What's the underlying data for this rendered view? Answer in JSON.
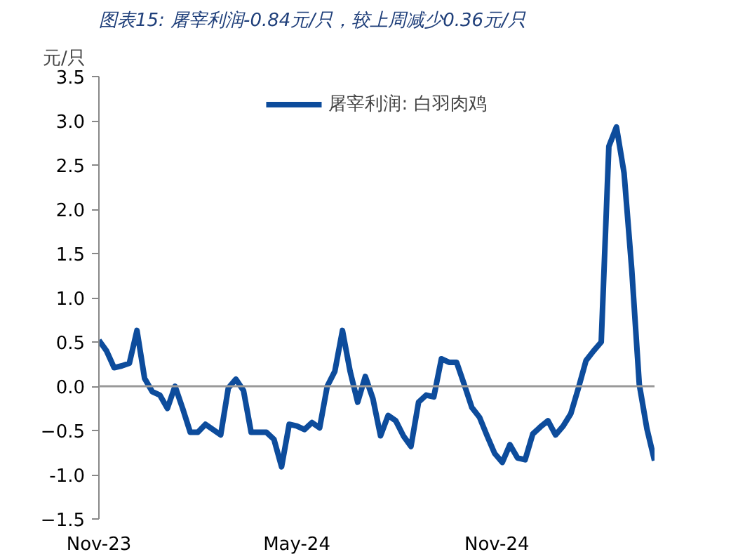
{
  "chart_data": {
    "type": "line",
    "title": "图表15: 屠宰利润-0.84元/只，较上周减少0.36元/只",
    "ylabel": "元/只",
    "x": [
      "2023-11-01",
      "2023-11-08",
      "2023-11-15",
      "2023-11-22",
      "2023-11-29",
      "2023-12-06",
      "2023-12-13",
      "2023-12-20",
      "2023-12-27",
      "2024-01-03",
      "2024-01-10",
      "2024-01-17",
      "2024-01-24",
      "2024-01-31",
      "2024-02-07",
      "2024-02-14",
      "2024-02-21",
      "2024-02-28",
      "2024-03-06",
      "2024-03-13",
      "2024-03-20",
      "2024-03-27",
      "2024-04-03",
      "2024-04-10",
      "2024-04-17",
      "2024-04-24",
      "2024-05-01",
      "2024-05-08",
      "2024-05-15",
      "2024-05-22",
      "2024-05-29",
      "2024-06-05",
      "2024-06-12",
      "2024-06-19",
      "2024-06-26",
      "2024-07-03",
      "2024-07-10",
      "2024-07-17",
      "2024-07-24",
      "2024-07-31",
      "2024-08-07",
      "2024-08-14",
      "2024-08-21",
      "2024-08-28",
      "2024-09-04",
      "2024-09-11",
      "2024-09-18",
      "2024-09-25",
      "2024-10-02",
      "2024-10-09",
      "2024-10-16",
      "2024-10-23",
      "2024-10-30",
      "2024-11-06",
      "2024-11-13",
      "2024-11-20",
      "2024-11-27",
      "2024-12-04",
      "2024-12-11",
      "2024-12-18",
      "2024-12-25",
      "2025-01-01",
      "2025-01-08",
      "2025-01-15",
      "2025-01-22",
      "2025-01-29",
      "2025-02-05",
      "2025-02-12",
      "2025-02-19",
      "2025-02-26",
      "2025-03-05",
      "2025-03-12",
      "2025-03-19",
      "2025-03-26"
    ],
    "series": [
      {
        "name": "屠宰利润: 白羽肉鸡",
        "color": "#0d4c9c",
        "values": [
          0.52,
          0.4,
          0.21,
          0.23,
          0.26,
          0.63,
          0.09,
          -0.06,
          -0.1,
          -0.25,
          0.0,
          -0.25,
          -0.52,
          -0.52,
          -0.43,
          -0.49,
          -0.55,
          -0.02,
          0.08,
          -0.05,
          -0.52,
          -0.52,
          -0.52,
          -0.6,
          -0.91,
          -0.43,
          -0.45,
          -0.49,
          -0.41,
          -0.47,
          0.0,
          0.17,
          0.63,
          0.17,
          -0.18,
          0.11,
          -0.14,
          -0.56,
          -0.33,
          -0.39,
          -0.56,
          -0.68,
          -0.18,
          -0.1,
          -0.12,
          0.31,
          0.27,
          0.27,
          0.02,
          -0.24,
          -0.35,
          -0.56,
          -0.76,
          -0.86,
          -0.66,
          -0.81,
          -0.83,
          -0.54,
          -0.46,
          -0.39,
          -0.55,
          -0.45,
          -0.31,
          -0.02,
          0.29,
          0.4,
          0.5,
          2.71,
          2.93,
          2.41,
          1.33,
          0.02,
          -0.48,
          -0.84
        ]
      }
    ],
    "xlim": [
      "2023-11-01",
      "2025-03-26"
    ],
    "xticks": [
      {
        "value": "2023-11-01",
        "label": "Nov-23"
      },
      {
        "value": "2024-05-01",
        "label": "May-24"
      },
      {
        "value": "2024-11-01",
        "label": "Nov-24"
      }
    ],
    "ylim": [
      -1.5,
      3.5
    ],
    "yticks": [
      -1.5,
      {
        "value": -1.0,
        "label": "-1.0"
      },
      -0.5,
      {
        "value": 0,
        "label": "0.0"
      },
      0.5,
      {
        "value": 1.0,
        "label": "1.0"
      },
      1.5,
      {
        "value": 2.0,
        "label": "2.0"
      },
      2.5,
      {
        "value": 3.0,
        "label": "3.0"
      },
      3.5
    ],
    "ref_lines": [
      {
        "axis": "y",
        "value": 0,
        "color": "#999999"
      }
    ],
    "grid": false,
    "legend": "top",
    "marker": "none",
    "line_style": "solid"
  }
}
